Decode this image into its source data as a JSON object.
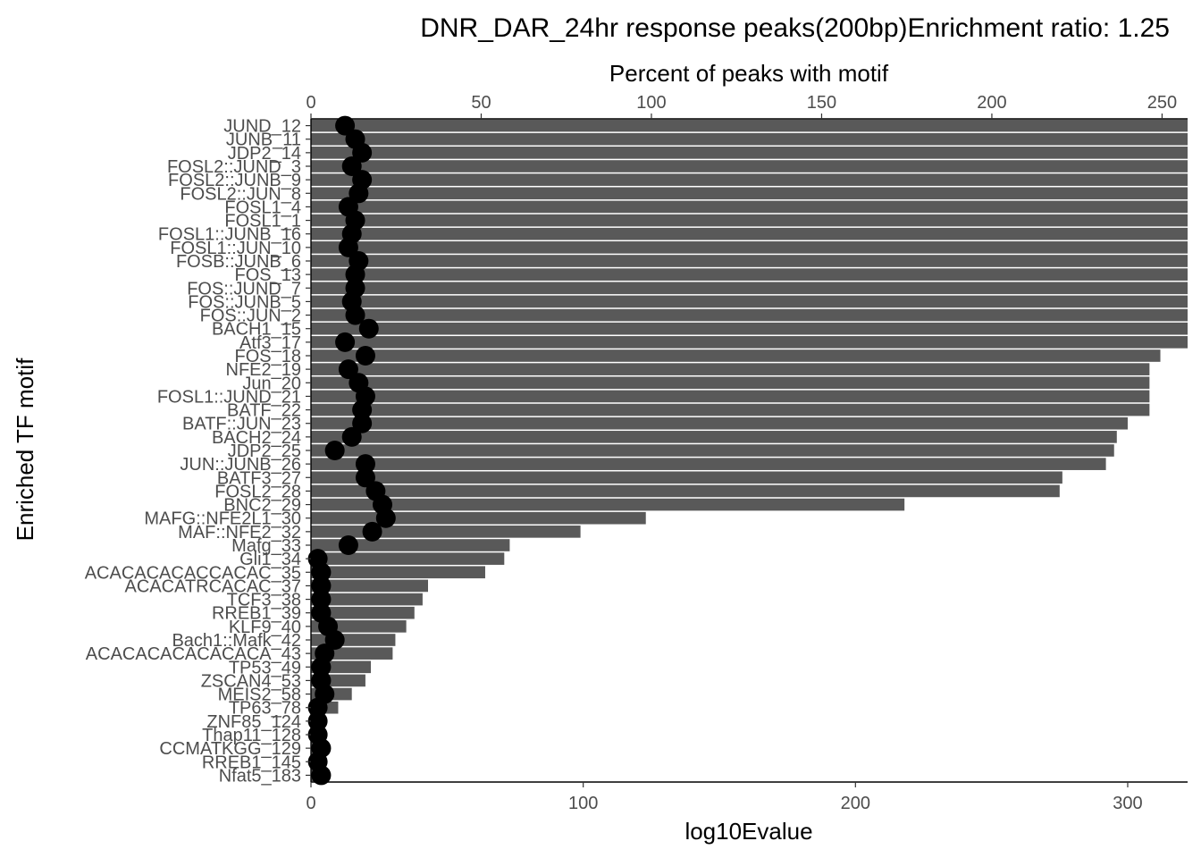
{
  "chart_data": {
    "type": "bar",
    "title": "DNR_DAR_24hr response peaks(200bp)Enrichment ratio: 1.25",
    "ylabel": "Enriched TF motif",
    "x_bottom": {
      "label": "log10Evalue",
      "ticks": [
        0,
        100,
        200,
        300
      ],
      "range": [
        0,
        322
      ]
    },
    "x_top": {
      "label": "Percent of peaks with motif",
      "ticks": [
        0,
        50,
        100,
        150,
        200,
        250
      ],
      "range": [
        0,
        257.5
      ]
    },
    "grid": false,
    "categories": [
      "JUND_12",
      "JUNB_11",
      "JDP2_14",
      "FOSL2::JUND_3",
      "FOSL2::JUNB_9",
      "FOSL2::JUN_8",
      "FOSL1_4",
      "FOSL1_1",
      "FOSL1::JUNB_16",
      "FOSL1::JUN_10",
      "FOSB::JUNB_6",
      "FOS_13",
      "FOS::JUND_7",
      "FOS::JUNB_5",
      "FOS::JUN_2",
      "BACH1_15",
      "Atf3_17",
      "FOS_18",
      "NFE2_19",
      "Jun_20",
      "FOSL1::JUND_21",
      "BATF_22",
      "BATF::JUN_23",
      "BACH2_24",
      "JDP2_25",
      "JUN::JUNB_26",
      "BATF3_27",
      "FOSL2_28",
      "BNC2_29",
      "MAFG::NFE2L1_30",
      "MAF::NFE2_32",
      "Mafg_33",
      "Gli1_34",
      "ACACACACACCACAC_35",
      "ACACATRCACAC_37",
      "TCF3_38",
      "RREB1_39",
      "KLF9_40",
      "Bach1::Mafk_42",
      "ACACACACACACACA_43",
      "TP53_49",
      "ZSCAN4_53",
      "MEIS2_58",
      "TP63_78",
      "ZNF85_124",
      "Thap11_128",
      "CCMATKGG_129",
      "RREB1_145",
      "Nfat5_183"
    ],
    "series": [
      {
        "values": [
          322,
          322,
          322,
          322,
          322,
          322,
          322,
          322,
          322,
          322,
          322,
          322,
          322,
          322,
          322,
          322,
          322,
          312,
          308,
          308,
          308,
          308,
          300,
          296,
          295,
          292,
          276,
          275,
          218,
          123,
          99,
          73,
          71,
          64,
          43,
          41,
          38,
          35,
          31,
          30,
          22,
          20,
          15,
          10,
          5,
          4,
          4,
          4,
          4
        ]
      },
      {
        "values": [
          10,
          13,
          15,
          12,
          15,
          14,
          11,
          13,
          12,
          11,
          14,
          13,
          13,
          12,
          13,
          17,
          10,
          16,
          11,
          14,
          16,
          15,
          15,
          12,
          7,
          16,
          16,
          19,
          21,
          22,
          18,
          11,
          2,
          3,
          3,
          3,
          3,
          5,
          7,
          4,
          3,
          3,
          4,
          2,
          2,
          2,
          3,
          2,
          3
        ]
      }
    ]
  }
}
